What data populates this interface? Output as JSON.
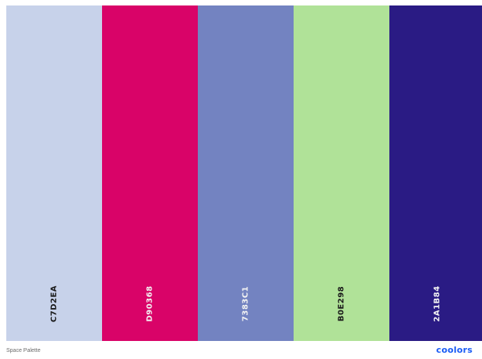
{
  "palette": {
    "name": "Space Palette",
    "swatches": [
      {
        "hex": "C7D2EA",
        "color": "#C7D2EA",
        "text_color": "#1a1a1a"
      },
      {
        "hex": "D90368",
        "color": "#D90368",
        "text_color": "#f3f3f3"
      },
      {
        "hex": "7383C1",
        "color": "#7383C1",
        "text_color": "#f3f3f3"
      },
      {
        "hex": "B0E298",
        "color": "#B0E298",
        "text_color": "#1a1a1a"
      },
      {
        "hex": "2A1B84",
        "color": "#2A1B84",
        "text_color": "#f3f3f3"
      }
    ]
  },
  "footer": {
    "logo": "coolors",
    "logo_color": "#1A5CF5"
  }
}
